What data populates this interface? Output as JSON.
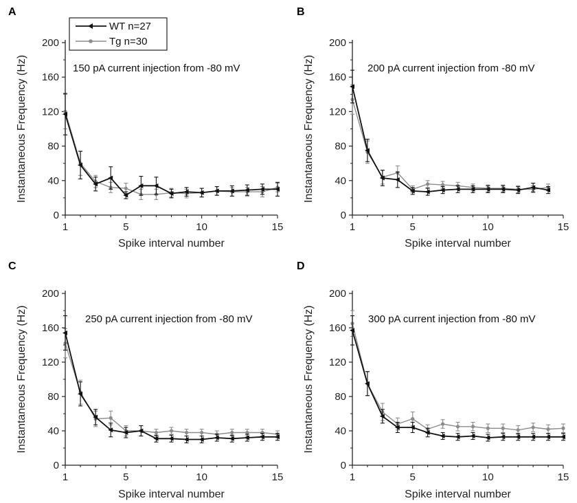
{
  "colors": {
    "wt": "#111111",
    "tg": "#8c8c8c"
  },
  "legend": {
    "entries": [
      {
        "label": "WT n=27",
        "color": "#111111",
        "marker": "left-triangle"
      },
      {
        "label": "Tg n=30",
        "color": "#8c8c8c",
        "marker": "circle"
      }
    ]
  },
  "chart_data": [
    {
      "panel": "A",
      "type": "line",
      "annotation": "150 pA current injection from -80 mV",
      "xlabel": "Spike interval number",
      "ylabel": "Instantaneous Frequency (Hz)",
      "xlim": [
        1,
        15
      ],
      "ylim": [
        0,
        200
      ],
      "xticks": [
        1,
        5,
        10,
        15
      ],
      "yticks": [
        0,
        40,
        80,
        120,
        160,
        200
      ],
      "x": [
        1,
        2,
        3,
        4,
        5,
        6,
        7,
        8,
        9,
        10,
        11,
        12,
        13,
        14,
        15
      ],
      "series": [
        {
          "name": "WT n=27",
          "values": [
            117,
            58,
            36,
            43,
            23,
            34,
            34,
            25,
            27,
            26,
            28,
            28,
            29,
            30,
            30
          ],
          "errors": [
            24,
            16,
            8,
            13,
            4,
            11,
            10,
            5,
            5,
            5,
            5,
            6,
            6,
            6,
            8
          ]
        },
        {
          "name": "Tg n=30",
          "values": [
            120,
            60,
            39,
            32,
            31,
            24,
            24,
            26,
            25,
            26,
            28,
            27,
            27,
            27,
            32
          ],
          "errors": [
            20,
            14,
            7,
            6,
            6,
            6,
            6,
            5,
            5,
            5,
            5,
            5,
            5,
            6,
            5
          ]
        }
      ]
    },
    {
      "panel": "B",
      "type": "line",
      "annotation": "200 pA current injection from -80 mV",
      "xlabel": "Spike interval number",
      "ylabel": "Instantaneous Frequency (Hz)",
      "xlim": [
        1,
        15
      ],
      "ylim": [
        0,
        200
      ],
      "xticks": [
        1,
        5,
        10,
        15
      ],
      "yticks": [
        0,
        40,
        80,
        120,
        160,
        200
      ],
      "x": [
        1,
        2,
        3,
        4,
        5,
        6,
        7,
        8,
        9,
        10,
        11,
        12,
        13,
        14
      ],
      "series": [
        {
          "name": "WT n=27",
          "values": [
            149,
            75,
            43,
            41,
            28,
            27,
            29,
            30,
            30,
            30,
            30,
            29,
            32,
            29
          ],
          "errors": [
            19,
            13,
            9,
            9,
            4,
            4,
            4,
            4,
            4,
            4,
            4,
            4,
            5,
            4
          ]
        },
        {
          "name": "Tg n=30",
          "values": [
            134,
            73,
            44,
            49,
            30,
            36,
            35,
            34,
            32,
            31,
            31,
            30,
            30,
            32
          ],
          "errors": [
            17,
            13,
            8,
            8,
            4,
            4,
            4,
            4,
            4,
            4,
            4,
            4,
            4,
            4
          ]
        }
      ]
    },
    {
      "panel": "C",
      "type": "line",
      "annotation": "250 pA current injection from -80 mV",
      "xlabel": "Spike interval number",
      "ylabel": "Instantaneous Frequency (Hz)",
      "xlim": [
        1,
        15
      ],
      "ylim": [
        0,
        200
      ],
      "xticks": [
        1,
        5,
        10,
        15
      ],
      "yticks": [
        0,
        40,
        80,
        120,
        160,
        200
      ],
      "x": [
        1,
        2,
        3,
        4,
        5,
        6,
        7,
        8,
        9,
        10,
        11,
        12,
        13,
        14,
        15
      ],
      "series": [
        {
          "name": "WT n=27",
          "values": [
            154,
            83,
            56,
            41,
            38,
            40,
            31,
            31,
            30,
            30,
            32,
            31,
            32,
            33,
            33
          ],
          "errors": [
            20,
            14,
            9,
            8,
            6,
            6,
            4,
            4,
            4,
            4,
            4,
            4,
            4,
            4,
            4
          ]
        },
        {
          "name": "Tg n=30",
          "values": [
            142,
            85,
            54,
            55,
            40,
            40,
            38,
            40,
            38,
            38,
            36,
            38,
            38,
            38,
            36
          ],
          "errors": [
            17,
            14,
            9,
            8,
            6,
            6,
            4,
            4,
            4,
            4,
            4,
            4,
            4,
            4,
            4
          ]
        }
      ]
    },
    {
      "panel": "D",
      "type": "line",
      "annotation": "300 pA current injection from -80 mV",
      "xlabel": "Spike interval number",
      "ylabel": "Instantaneous Frequency (Hz)",
      "xlim": [
        1,
        15
      ],
      "ylim": [
        0,
        200
      ],
      "xticks": [
        1,
        5,
        10,
        15
      ],
      "yticks": [
        0,
        40,
        80,
        120,
        160,
        200
      ],
      "x": [
        1,
        2,
        3,
        4,
        5,
        6,
        7,
        8,
        9,
        10,
        11,
        12,
        13,
        14,
        15
      ],
      "series": [
        {
          "name": "WT n=27",
          "values": [
            157,
            95,
            57,
            44,
            44,
            38,
            34,
            33,
            34,
            32,
            33,
            33,
            33,
            33,
            33
          ],
          "errors": [
            17,
            14,
            8,
            6,
            6,
            5,
            4,
            4,
            4,
            4,
            4,
            4,
            4,
            4,
            4
          ]
        },
        {
          "name": "Tg n=30",
          "values": [
            165,
            95,
            62,
            48,
            54,
            42,
            48,
            45,
            45,
            43,
            43,
            41,
            44,
            42,
            43
          ],
          "errors": [
            15,
            14,
            10,
            7,
            8,
            5,
            5,
            5,
            5,
            5,
            5,
            5,
            5,
            5,
            5
          ]
        }
      ]
    }
  ]
}
